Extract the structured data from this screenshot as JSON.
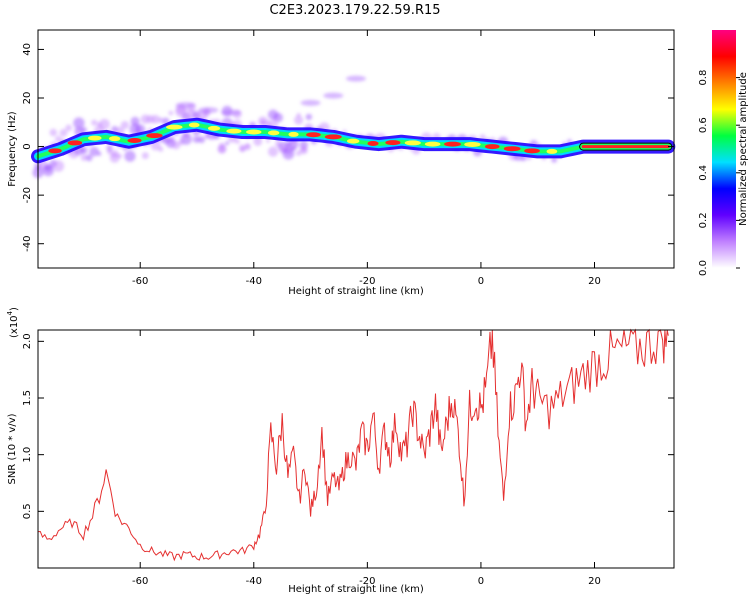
{
  "title": "C2E3.2023.179.22.59.R15",
  "chart_data": [
    {
      "type": "heatmap",
      "xlabel": "Height of straight line (km)",
      "ylabel": "Frequency (Hz)",
      "xlim": [
        -78,
        34
      ],
      "ylim": [
        -50,
        48
      ],
      "xticks": [
        -60,
        -40,
        -20,
        0,
        20
      ],
      "yticks": [
        -40,
        -20,
        0,
        20,
        40
      ],
      "ridge": {
        "x": [
          -78,
          -74,
          -70,
          -66,
          -62,
          -58,
          -54,
          -50,
          -46,
          -42,
          -38,
          -34,
          -30,
          -26,
          -22,
          -18,
          -14,
          -10,
          -6,
          -2,
          2,
          6,
          10,
          14,
          18,
          22,
          26,
          30,
          33
        ],
        "y": [
          -4,
          -1,
          3,
          4,
          2,
          4,
          8,
          9,
          7,
          6,
          6,
          5,
          5,
          4,
          2,
          1,
          2,
          1,
          1,
          1,
          0,
          -1,
          -2,
          -2,
          0,
          0,
          0,
          0,
          0
        ]
      },
      "colorbar": {
        "label": "Normalized spectral amplitude",
        "ticks": [
          "0.0",
          "0.2",
          "0.4",
          "0.6",
          "0.8"
        ],
        "range": [
          0,
          1
        ],
        "colors": [
          "#ffffff",
          "#c080ff",
          "#6000ff",
          "#0000ff",
          "#00e0ff",
          "#00ff40",
          "#ffff00",
          "#ff8000",
          "#ff0000",
          "#ff0080"
        ]
      },
      "grid": false
    },
    {
      "type": "line",
      "xlabel": "Height of straight line (km)",
      "ylabel": "SNR (10 * v/v)",
      "multiplier": "(x10",
      "multiplier_exp": "4",
      "xlim": [
        -78,
        34
      ],
      "ylim": [
        0,
        2.1
      ],
      "xticks": [
        -60,
        -40,
        -20,
        0,
        20
      ],
      "yticks": [
        "0.5",
        "1.0",
        "1.5",
        "2.0"
      ],
      "color": "#e53030",
      "series": [
        {
          "x": [
            -78,
            -76,
            -74,
            -72,
            -70,
            -68,
            -66,
            -64,
            -62,
            -60,
            -58,
            -56,
            -54,
            -52,
            -50,
            -48,
            -46,
            -44,
            -42,
            -40,
            -39,
            -38,
            -37,
            -36,
            -35,
            -34,
            -33,
            -32,
            -31,
            -30,
            -29,
            -28,
            -27,
            -26,
            -25,
            -24,
            -23,
            -22,
            -21,
            -20,
            -19,
            -18,
            -17,
            -16,
            -15,
            -14,
            -13,
            -12,
            -11,
            -10,
            -9,
            -8,
            -7,
            -6,
            -5,
            -4,
            -3,
            -2,
            -1,
            0,
            1,
            2,
            3,
            4,
            5,
            6,
            7,
            8,
            9,
            10,
            12,
            14,
            16,
            18,
            20,
            22,
            24,
            26,
            28,
            30,
            32,
            33
          ],
          "y": [
            0.3,
            0.25,
            0.35,
            0.4,
            0.3,
            0.5,
            0.85,
            0.45,
            0.35,
            0.2,
            0.15,
            0.12,
            0.1,
            0.12,
            0.1,
            0.1,
            0.12,
            0.15,
            0.15,
            0.2,
            0.3,
            0.5,
            1.2,
            0.9,
            1.3,
            0.8,
            1.0,
            0.6,
            0.9,
            0.5,
            0.7,
            1.2,
            0.6,
            0.8,
            0.7,
            0.9,
            1.0,
            0.9,
            1.2,
            1.05,
            1.35,
            0.9,
            1.2,
            1.0,
            1.3,
            1.0,
            1.1,
            1.4,
            1.2,
            1.0,
            1.2,
            1.45,
            1.0,
            1.3,
            1.5,
            1.2,
            0.6,
            1.4,
            1.5,
            1.4,
            1.6,
            2.05,
            1.2,
            0.6,
            1.4,
            1.5,
            1.8,
            1.3,
            1.6,
            1.5,
            1.4,
            1.5,
            1.6,
            1.7,
            1.8,
            1.85,
            1.9,
            1.95,
            1.95,
            2.0,
            2.05,
            2.05
          ]
        }
      ]
    }
  ]
}
